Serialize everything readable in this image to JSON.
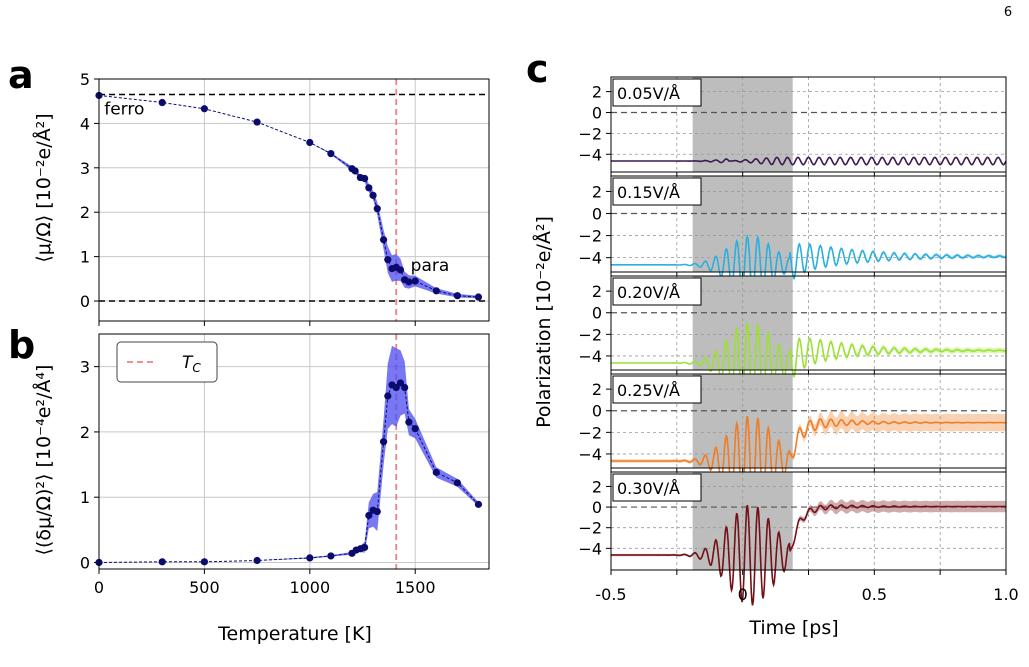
{
  "page_number": "6",
  "chart_data": [
    {
      "id": "a",
      "panel_label": "a",
      "type": "line",
      "ylabel": "⟨μ/Ω⟩ [10⁻²e/Å²]",
      "xlabel": "",
      "xlim": [
        0,
        1850
      ],
      "ylim": [
        -0.45,
        5
      ],
      "xticks": [
        0,
        500,
        1000,
        1500
      ],
      "xtick_labels": [
        "",
        "",
        "",
        ""
      ],
      "yticks": [
        0,
        1,
        2,
        3,
        4,
        5
      ],
      "ytick_labels": [
        "0",
        "1",
        "2",
        "3",
        "4",
        "5"
      ],
      "grid": true,
      "annotations": [
        {
          "text": "ferro",
          "x": 120,
          "y": 4.2
        },
        {
          "text": "para",
          "x": 1570,
          "y": 0.68
        }
      ],
      "hlines": [
        4.65,
        0
      ],
      "vline_tc": 1410,
      "series": [
        {
          "color": "#0b0b6e",
          "x": [
            0,
            300,
            500,
            750,
            1000,
            1100,
            1200,
            1215,
            1240,
            1260,
            1280,
            1300,
            1320,
            1350,
            1370,
            1390,
            1410,
            1430,
            1450,
            1470,
            1500,
            1600,
            1700,
            1800
          ],
          "y": [
            4.63,
            4.47,
            4.33,
            4.03,
            3.57,
            3.32,
            2.98,
            2.93,
            2.78,
            2.76,
            2.55,
            2.38,
            2.08,
            1.38,
            0.93,
            0.73,
            0.76,
            0.7,
            0.48,
            0.43,
            0.45,
            0.23,
            0.12,
            0.09
          ],
          "err": [
            0,
            0,
            0,
            0,
            0,
            0.02,
            0.05,
            0.05,
            0.06,
            0.08,
            0.09,
            0.1,
            0.15,
            0.22,
            0.3,
            0.3,
            0.3,
            0.25,
            0.18,
            0.15,
            0.12,
            0.06,
            0.04,
            0.03
          ]
        }
      ]
    },
    {
      "id": "b",
      "panel_label": "b",
      "type": "line",
      "ylabel": "⟨(δμ/Ω)²⟩ [10⁻⁴e²/Å⁴]",
      "xlabel": "Temperature [K]",
      "xlim": [
        0,
        1850
      ],
      "ylim": [
        -0.1,
        3.5
      ],
      "xticks": [
        0,
        500,
        1000,
        1500
      ],
      "xtick_labels": [
        "0",
        "500",
        "1000",
        "1500"
      ],
      "yticks": [
        0,
        1,
        2,
        3
      ],
      "ytick_labels": [
        "0",
        "1",
        "2",
        "3"
      ],
      "grid": true,
      "legend": {
        "label": "T_C",
        "position": "top-left"
      },
      "vline_tc": 1410,
      "series": [
        {
          "color": "#0b0b6e",
          "x": [
            0,
            300,
            500,
            750,
            1000,
            1100,
            1200,
            1220,
            1240,
            1260,
            1280,
            1300,
            1320,
            1350,
            1370,
            1390,
            1410,
            1430,
            1450,
            1470,
            1500,
            1600,
            1700,
            1800
          ],
          "y": [
            0.0,
            0.01,
            0.01,
            0.03,
            0.07,
            0.1,
            0.14,
            0.19,
            0.21,
            0.23,
            0.72,
            0.8,
            0.78,
            1.85,
            2.55,
            2.72,
            2.68,
            2.75,
            2.68,
            2.15,
            2.05,
            1.38,
            1.22,
            0.89
          ],
          "err": [
            0,
            0,
            0,
            0,
            0.01,
            0.01,
            0.02,
            0.03,
            0.05,
            0.08,
            0.2,
            0.25,
            0.3,
            0.35,
            0.5,
            0.6,
            0.6,
            0.5,
            0.4,
            0.2,
            0.15,
            0.08,
            0.06,
            0.03
          ]
        }
      ]
    },
    {
      "id": "c",
      "panel_label": "c",
      "type": "line",
      "ylabel": "Polarization [10⁻²e/Å²]",
      "xlabel": "Time [ps]",
      "xlim": [
        -0.5,
        1.0
      ],
      "xticks": [
        -0.5,
        0,
        0.5,
        1.0
      ],
      "xtick_labels": [
        "-0.5",
        "0",
        "0.5",
        "1.0"
      ],
      "pulse_window": [
        -0.19,
        0.19
      ],
      "subplots": [
        {
          "label": "0.05V/Å",
          "color": "#3b1a4f",
          "ylim": [
            -5.7,
            3.4
          ],
          "yticks": [
            2,
            0,
            -2,
            -4
          ],
          "ytick_labels": [
            "2",
            "0",
            "−2",
            "−4"
          ],
          "base": -4.65,
          "pulse_amp": 0.35,
          "after_amp": 0.35,
          "after_mean": -4.65,
          "decay": 3.0,
          "band": 0.0
        },
        {
          "label": "0.15V/Å",
          "color": "#2ab0df",
          "ylim": [
            -5.3,
            3.4
          ],
          "yticks": [
            2,
            0,
            -2,
            -4
          ],
          "ytick_labels": [
            "2",
            "0",
            "−2",
            "−4"
          ],
          "base": -4.65,
          "pulse_amp": 2.6,
          "after_amp": 1.6,
          "after_mean": -3.9,
          "decay": 4.0,
          "band": 0.15
        },
        {
          "label": "0.20V/Å",
          "color": "#9be134",
          "ylim": [
            -5.3,
            3.4
          ],
          "yticks": [
            2,
            0,
            -2,
            -4
          ],
          "ytick_labels": [
            "2",
            "0",
            "−2",
            "−4"
          ],
          "base": -4.65,
          "pulse_amp": 3.8,
          "after_amp": 1.8,
          "after_mean": -3.5,
          "decay": 5.0,
          "band": 0.25
        },
        {
          "label": "0.25V/Å",
          "color": "#ef7d26",
          "ylim": [
            -5.3,
            3.4
          ],
          "yticks": [
            2,
            0,
            -2,
            -4
          ],
          "ytick_labels": [
            "2",
            "0",
            "−2",
            "−4"
          ],
          "base": -4.65,
          "pulse_amp": 4.2,
          "after_amp": 0.9,
          "after_mean": -1.1,
          "decay": 6.0,
          "band": 0.8
        },
        {
          "label": "0.30V/Å",
          "color": "#741016",
          "ylim": [
            -6.1,
            3.4
          ],
          "yticks": [
            2,
            0,
            -2,
            -4
          ],
          "ytick_labels": [
            "2",
            "0",
            "−2",
            "−4"
          ],
          "base": -4.65,
          "pulse_amp": 4.9,
          "after_amp": 0.5,
          "after_mean": 0.05,
          "decay": 6.0,
          "band": 0.55
        }
      ]
    }
  ]
}
